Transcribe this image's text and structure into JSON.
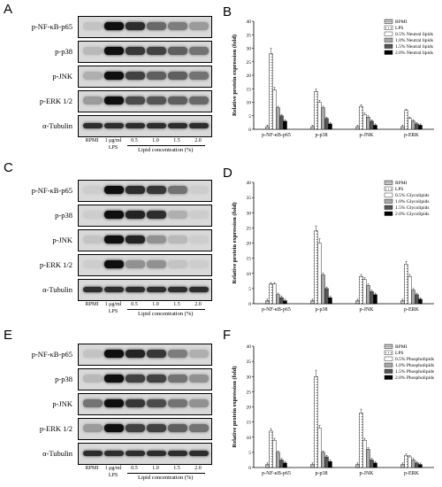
{
  "panels": [
    {
      "letter": "A",
      "kind": "blot",
      "labels": [
        "p-NF-κB-p65",
        "p-p38",
        "p-JNK",
        "p-ERK 1/2",
        "α-Tubulin"
      ]
    },
    {
      "letter": "B",
      "kind": "chart"
    },
    {
      "letter": "C",
      "kind": "blot",
      "labels": [
        "p-NF-κB-p65",
        "p-p38",
        "p-JNK",
        "p-ERK 1/2",
        "α-Tubulin"
      ]
    },
    {
      "letter": "D",
      "kind": "chart"
    },
    {
      "letter": "E",
      "kind": "blot",
      "labels": [
        "p-NF-κB-p65",
        "p-p38",
        "p-JNK",
        "p-ERK 1/2",
        "α-Tubulin"
      ]
    },
    {
      "letter": "F",
      "kind": "chart"
    }
  ],
  "blot_lanes": [
    "RPMI",
    "1 μg/ml\nLPS",
    "0.5",
    "1.0",
    "1.5",
    "2.0"
  ],
  "blot_lanes_lines": {
    "rpmi": "RPMI",
    "lps1": "1 μg/ml",
    "lps2": "LPS",
    "c05": "0.5",
    "c10": "1.0",
    "c15": "1.5",
    "c20": "2.0"
  },
  "blot_xcaption": "Lipid concentration (%)",
  "blot_intensity": {
    "A": [
      [
        0.1,
        1,
        0.85,
        0.55,
        0.45,
        0.3
      ],
      [
        0.15,
        1,
        0.8,
        0.75,
        0.6,
        0.5
      ],
      [
        0.2,
        1,
        0.75,
        0.6,
        0.6,
        0.5
      ],
      [
        0.3,
        1,
        0.7,
        0.65,
        0.6,
        0.55
      ],
      [
        0.85,
        0.85,
        0.85,
        0.85,
        0.85,
        0.85
      ]
    ],
    "C": [
      [
        0.05,
        1,
        0.85,
        0.8,
        0.5,
        0.05
      ],
      [
        0.05,
        1,
        0.9,
        0.85,
        0.2,
        0.05
      ],
      [
        0.1,
        1,
        0.9,
        0.35,
        0.15,
        0.05
      ],
      [
        0.05,
        1,
        0.35,
        0.35,
        0.1,
        0.05
      ],
      [
        0.85,
        0.85,
        0.85,
        0.85,
        0.85,
        0.85
      ]
    ],
    "E": [
      [
        0.1,
        1,
        0.9,
        0.8,
        0.45,
        0.2
      ],
      [
        0.15,
        1,
        0.75,
        0.75,
        0.5,
        0.35
      ],
      [
        0.5,
        1,
        0.8,
        0.7,
        0.5,
        0.35
      ],
      [
        0.3,
        1,
        0.75,
        0.75,
        0.6,
        0.5
      ],
      [
        0.85,
        0.85,
        0.85,
        0.85,
        0.85,
        0.85
      ]
    ]
  },
  "chart_data": [
    {
      "panel": "B",
      "type": "bar",
      "ylabel": "Relative protein expression (fold)",
      "ylim": [
        0,
        40
      ],
      "yticks": [
        0,
        5,
        10,
        15,
        20,
        25,
        30,
        35,
        40
      ],
      "categories": [
        "p-NF-κB-p65",
        "p-p38",
        "p-JNK",
        "p-ERK"
      ],
      "legend_position": "top-right",
      "series": [
        {
          "name": "RPMI",
          "pattern": "stripe-h",
          "values": [
            1,
            1,
            1,
            1
          ]
        },
        {
          "name": "LPS",
          "pattern": "dots",
          "values": [
            28,
            14,
            8.5,
            7
          ]
        },
        {
          "name": "0.5% Neutral lipids",
          "pattern": "white",
          "values": [
            14.5,
            10,
            5.5,
            4
          ]
        },
        {
          "name": "1.0% Neutral lipids",
          "pattern": "lightgray",
          "values": [
            8,
            8,
            4.5,
            3
          ]
        },
        {
          "name": "1.5% Neutral lipids",
          "pattern": "darkgray",
          "values": [
            5,
            4,
            3,
            2
          ]
        },
        {
          "name": "2.0% Neutral lipids",
          "pattern": "black",
          "values": [
            3,
            2,
            1.5,
            1.5
          ]
        }
      ]
    },
    {
      "panel": "D",
      "type": "bar",
      "ylabel": "Relative protein expression (fold)",
      "ylim": [
        0,
        40
      ],
      "yticks": [
        0,
        5,
        10,
        15,
        20,
        25,
        30,
        35,
        40
      ],
      "categories": [
        "p-NF-κB-p65",
        "p-p38",
        "p-JNK",
        "p-ERK"
      ],
      "legend_position": "top-right",
      "series": [
        {
          "name": "RPMI",
          "pattern": "stripe-h",
          "values": [
            1,
            1,
            1,
            1
          ]
        },
        {
          "name": "LPS",
          "pattern": "dots",
          "values": [
            6.5,
            24,
            9,
            13
          ]
        },
        {
          "name": "0.5% Glycolipids",
          "pattern": "white",
          "values": [
            6.5,
            20,
            8,
            9
          ]
        },
        {
          "name": "1.0% Glycolipids",
          "pattern": "lightgray",
          "values": [
            3,
            9.5,
            6,
            4.5
          ]
        },
        {
          "name": "1.5% Glycolipids",
          "pattern": "darkgray",
          "values": [
            2,
            5,
            4,
            3
          ]
        },
        {
          "name": "2.0% Glycolipids",
          "pattern": "black",
          "values": [
            1,
            2,
            3,
            1.5
          ]
        }
      ]
    },
    {
      "panel": "F",
      "type": "bar",
      "ylabel": "Relative protein expression (fold)",
      "ylim": [
        0,
        40
      ],
      "yticks": [
        0,
        5,
        10,
        15,
        20,
        25,
        30,
        35,
        40
      ],
      "categories": [
        "p-NF-κB-p65",
        "p-p38",
        "p-JNK",
        "p-ERK"
      ],
      "legend_position": "top-right",
      "series": [
        {
          "name": "RPMI",
          "pattern": "stripe-h",
          "values": [
            1,
            1,
            1,
            1
          ]
        },
        {
          "name": "LPS",
          "pattern": "dots",
          "values": [
            12,
            30,
            18,
            4
          ]
        },
        {
          "name": "0.5% Phospholipids",
          "pattern": "white",
          "values": [
            9,
            13,
            9,
            3.5
          ]
        },
        {
          "name": "1.0% Phospholipids",
          "pattern": "lightgray",
          "values": [
            5,
            5,
            6,
            2.5
          ]
        },
        {
          "name": "1.5% Phospholipids",
          "pattern": "darkgray",
          "values": [
            2.5,
            3.5,
            2.5,
            1.5
          ]
        },
        {
          "name": "2.0% Phospholipids",
          "pattern": "black",
          "values": [
            1.5,
            2,
            1.5,
            1
          ]
        }
      ]
    }
  ]
}
